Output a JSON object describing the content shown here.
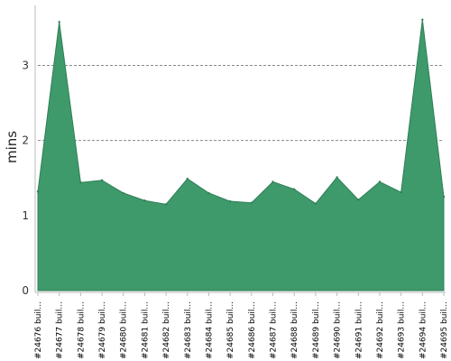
{
  "chart_data": {
    "type": "area",
    "ylabel": "mins",
    "ylim": [
      0,
      3.8
    ],
    "yticks": [
      "0",
      "1",
      "2",
      "3"
    ],
    "grid": true,
    "categories": [
      "#24676 buil...",
      "#24677 buil...",
      "#24678 buil...",
      "#24679 buil...",
      "#24680 buil...",
      "#24681 buil...",
      "#24682 buil...",
      "#24683 buil...",
      "#24684 buil...",
      "#24685 buil...",
      "#24686 buil...",
      "#24687 buil...",
      "#24688 buil...",
      "#24689 buil...",
      "#24690 buil...",
      "#24691 buil...",
      "#24692 buil...",
      "#24693 buil...",
      "#24694 buil...",
      "#24695 buil..."
    ],
    "values": [
      1.32,
      3.58,
      1.44,
      1.47,
      1.3,
      1.2,
      1.15,
      1.49,
      1.3,
      1.19,
      1.17,
      1.45,
      1.35,
      1.16,
      1.51,
      1.21,
      1.45,
      1.31,
      3.61,
      1.25
    ],
    "colors": {
      "fill": "#3f9a6b",
      "stroke": "#2f7f55",
      "grid": "#888888",
      "axis": "#bbbbbb"
    }
  }
}
